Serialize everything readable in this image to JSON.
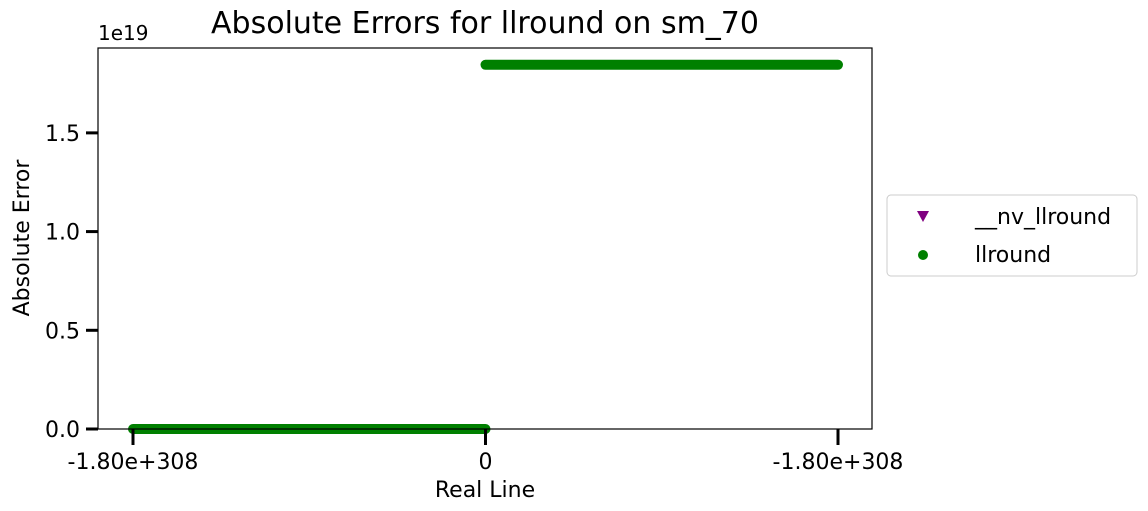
{
  "chart_data": {
    "type": "scatter",
    "title": "Absolute Errors for llround on sm_70",
    "xlabel": "Real Line",
    "ylabel": "Absolute Error",
    "y_offset_label": "1e19",
    "y_multiplier": 1e+19,
    "xlim": [
      -1.0,
      1.0
    ],
    "ylim": [
      0,
      1.93
    ],
    "x_ticks": [
      {
        "value": -1.0,
        "label": "-1.80e+308"
      },
      {
        "value": 0.0,
        "label": "0"
      },
      {
        "value": 1.0,
        "label": "-1.80e+308"
      }
    ],
    "y_ticks": [
      {
        "value": 0.0,
        "label": "0.0"
      },
      {
        "value": 0.5,
        "label": "0.5"
      },
      {
        "value": 1.0,
        "label": "1.0"
      },
      {
        "value": 1.5,
        "label": "1.5"
      }
    ],
    "series": [
      {
        "name": "__nv_llround",
        "color": "#800080",
        "marker": "triangle-down",
        "segments": []
      },
      {
        "name": "llround",
        "color": "#008000",
        "marker": "circle",
        "segments": [
          {
            "x_start": -1.0,
            "x_end": 0.0,
            "y": 0.0
          },
          {
            "x_start": 0.0,
            "x_end": 1.0,
            "y": 1.845
          }
        ]
      }
    ],
    "legend_position": "outside-right",
    "grid": false
  }
}
